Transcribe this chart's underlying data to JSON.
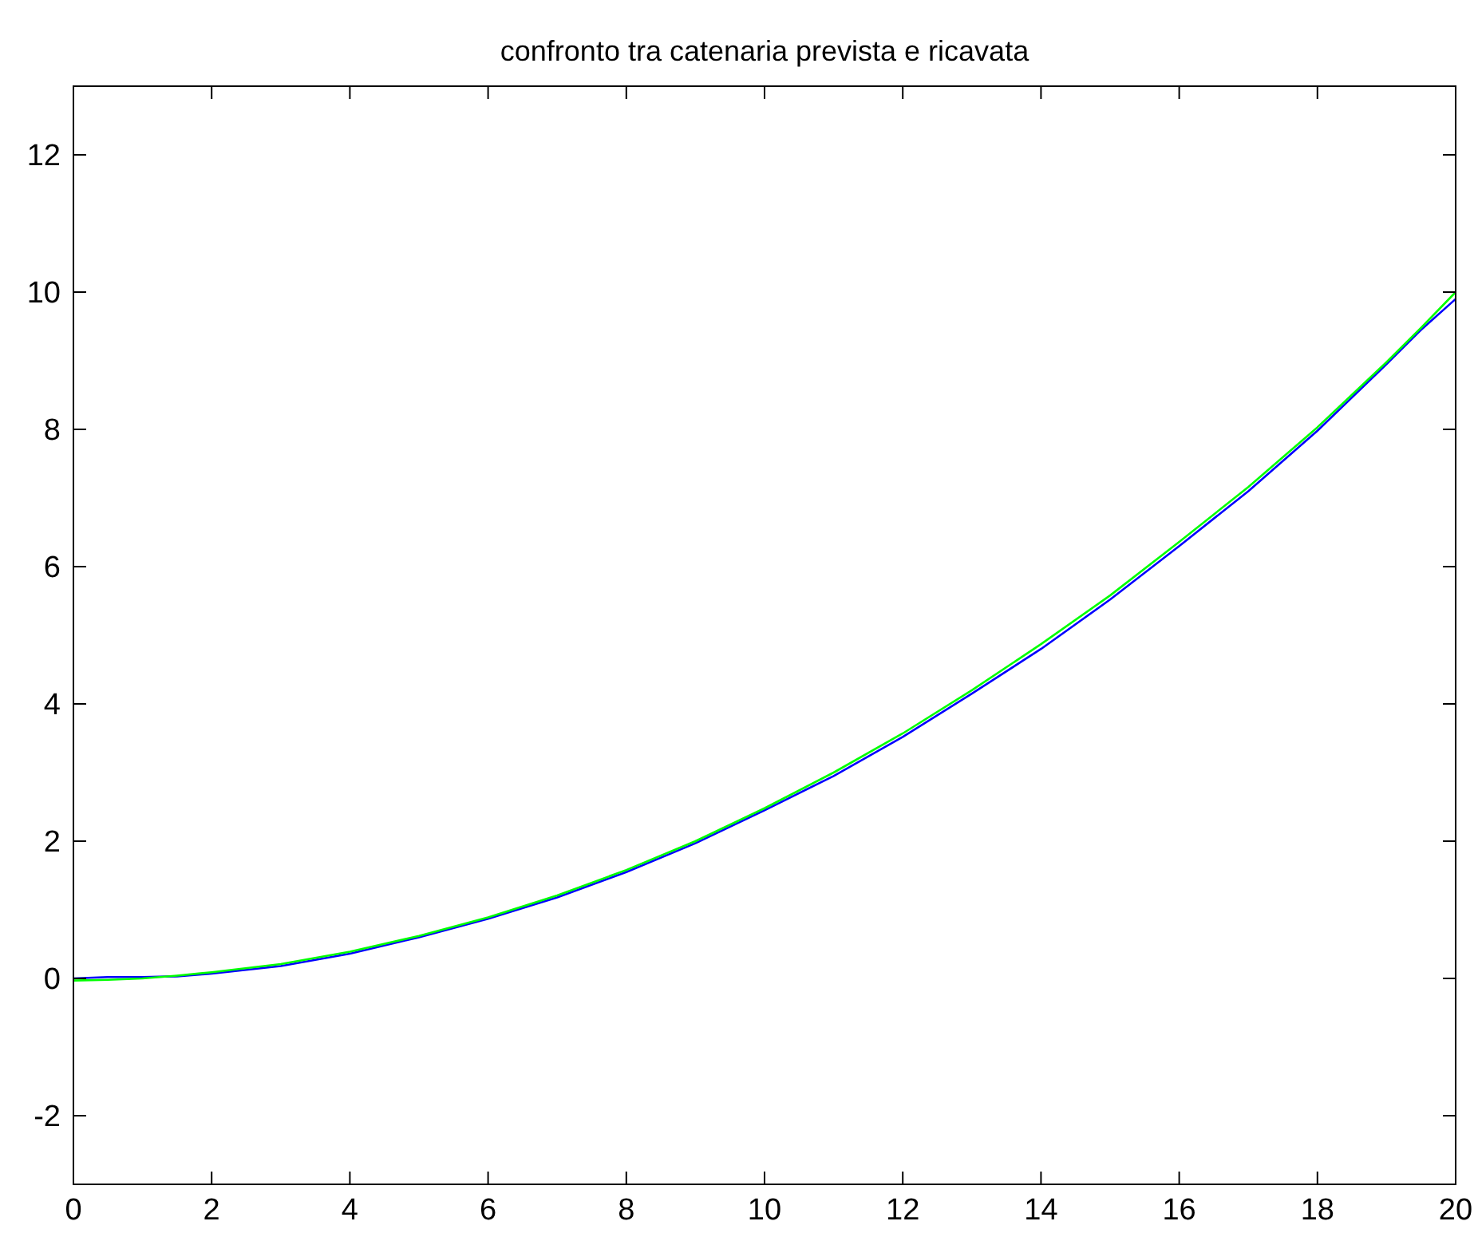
{
  "chart_data": {
    "type": "line",
    "title": "confronto tra catenaria prevista e ricavata",
    "xlim": [
      0,
      20
    ],
    "ylim": [
      -3,
      13
    ],
    "xticks": [
      0,
      2,
      4,
      6,
      8,
      10,
      12,
      14,
      16,
      18,
      20
    ],
    "yticks": [
      -2,
      0,
      2,
      4,
      6,
      8,
      10,
      12
    ],
    "line_style": "solid",
    "marker": "none",
    "series": [
      {
        "color": "#0000ff",
        "x": [
          0,
          0.5,
          1,
          1.5,
          2,
          3,
          4,
          5,
          6,
          7,
          8,
          9,
          10,
          11,
          12,
          13,
          14,
          15,
          16,
          17,
          18,
          19,
          19.5,
          20
        ],
        "values": [
          0,
          0.02,
          0.02,
          0.03,
          0.07,
          0.18,
          0.36,
          0.6,
          0.87,
          1.18,
          1.55,
          1.97,
          2.45,
          2.95,
          3.52,
          4.15,
          4.8,
          5.52,
          6.3,
          7.1,
          7.98,
          8.95,
          9.45,
          9.9
        ]
      },
      {
        "color": "#00ff00",
        "x": [
          0,
          0.5,
          1,
          1.5,
          2,
          3,
          4,
          5,
          6,
          7,
          8,
          9,
          10,
          11,
          12,
          13,
          14,
          15,
          16,
          17,
          18,
          19,
          19.5,
          20
        ],
        "values": [
          -0.03,
          -0.02,
          0,
          0.04,
          0.09,
          0.21,
          0.39,
          0.62,
          0.89,
          1.21,
          1.58,
          2,
          2.48,
          3,
          3.57,
          4.2,
          4.87,
          5.58,
          6.36,
          7.16,
          8.03,
          8.98,
          9.48,
          10
        ]
      }
    ]
  }
}
